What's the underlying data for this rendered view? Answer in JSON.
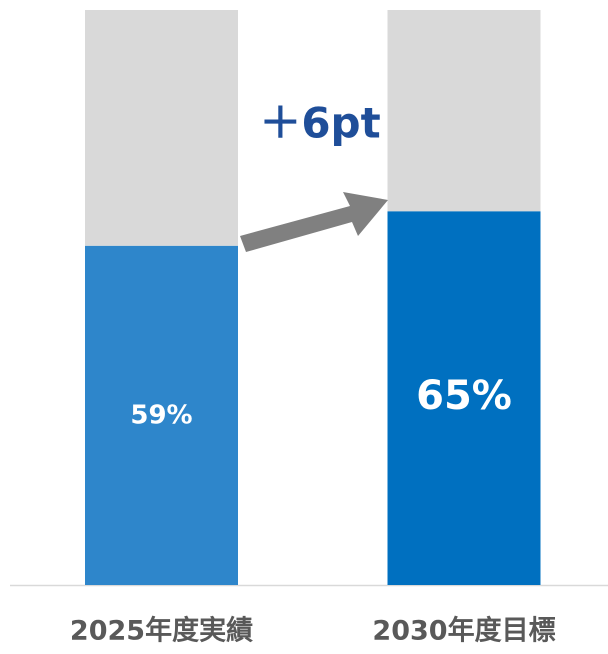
{
  "chart_data": {
    "type": "stacked_bar",
    "categories": [
      "2025年度実績",
      "2030年度目標"
    ],
    "series": [
      {
        "colors": [
          "#2e86cb",
          "#0070c0"
        ],
        "values": [
          59,
          65
        ],
        "value_labels": [
          "59%",
          "65%"
        ]
      },
      {
        "color": "#d9d9d9",
        "values": [
          41,
          35
        ]
      }
    ],
    "ylim": [
      0,
      100
    ],
    "annotation": "＋6pt"
  }
}
